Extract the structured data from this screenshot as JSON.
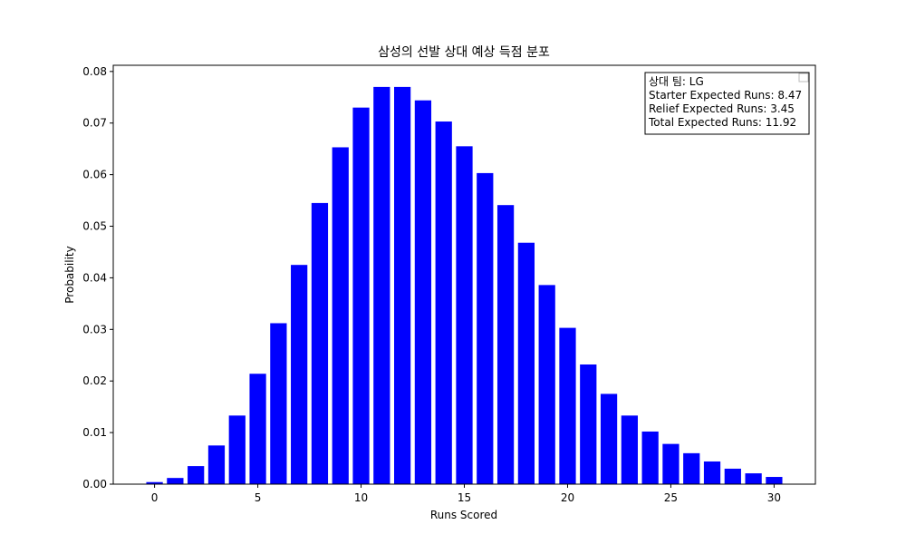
{
  "chart_data": {
    "type": "bar",
    "title": "삼성의 선발 상대 예상 득점 분포",
    "xlabel": "Runs Scored",
    "ylabel": "Probability",
    "bar_color": "#0000ff",
    "x": [
      0,
      1,
      2,
      3,
      4,
      5,
      6,
      7,
      8,
      9,
      10,
      11,
      12,
      13,
      14,
      15,
      16,
      17,
      18,
      19,
      20,
      21,
      22,
      23,
      24,
      25,
      26,
      27,
      28,
      29,
      30
    ],
    "values": [
      0.0004,
      0.0012,
      0.0035,
      0.0075,
      0.0133,
      0.0214,
      0.0312,
      0.0425,
      0.0545,
      0.0653,
      0.073,
      0.077,
      0.077,
      0.0744,
      0.0703,
      0.0655,
      0.0603,
      0.0541,
      0.0468,
      0.0386,
      0.0303,
      0.0232,
      0.0175,
      0.0133,
      0.0102,
      0.0078,
      0.006,
      0.0044,
      0.003,
      0.0021,
      0.0014
    ],
    "xlim": [
      -2,
      32
    ],
    "ylim": [
      0,
      0.0812
    ],
    "xticks": [
      0,
      5,
      10,
      15,
      20,
      25,
      30
    ],
    "yticks": [
      0.0,
      0.01,
      0.02,
      0.03,
      0.04,
      0.05,
      0.06,
      0.07,
      0.08
    ],
    "ytick_labels": [
      "0.00",
      "0.01",
      "0.02",
      "0.03",
      "0.04",
      "0.05",
      "0.06",
      "0.07",
      "0.08"
    ],
    "grid": false,
    "legend_position": "top-right",
    "annotation": {
      "lines": [
        "상대 팀: LG",
        "Starter Expected Runs: 8.47",
        "Relief Expected Runs: 3.45",
        "Total Expected Runs: 11.92"
      ]
    }
  }
}
